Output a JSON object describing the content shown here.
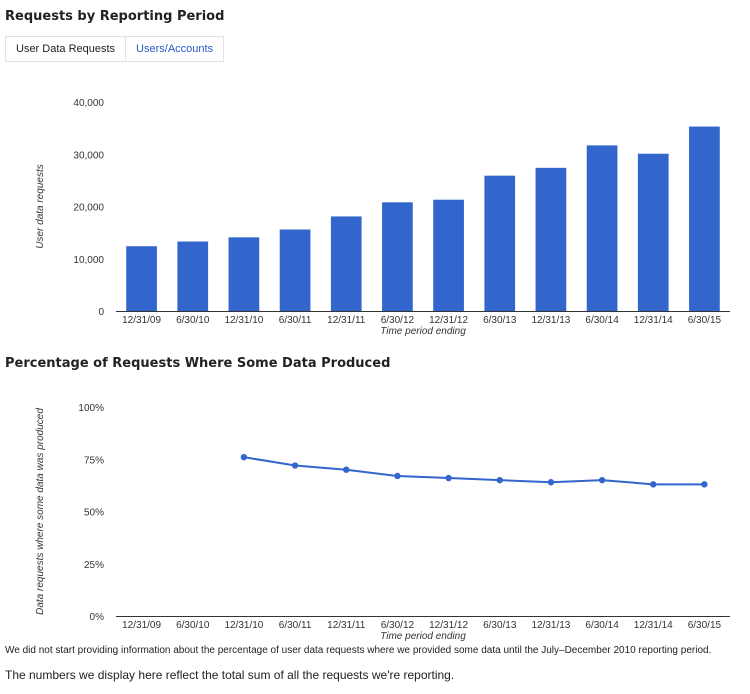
{
  "section1_title": "Requests by Reporting Period",
  "tabs": [
    {
      "label": "User Data Requests",
      "active": true
    },
    {
      "label": "Users/Accounts",
      "active": false
    }
  ],
  "section2_title": "Percentage of Requests Where Some Data Produced",
  "note_percentage": "We did not start providing information about the percentage of user data requests where we provided some data until the July–December 2010 reporting period.",
  "note_totals": "The numbers we display here reflect the total sum of all the requests we're reporting.",
  "chart_data": [
    {
      "type": "bar",
      "color": "#3366cc",
      "categories": [
        "12/31/09",
        "6/30/10",
        "12/31/10",
        "6/30/11",
        "12/31/11",
        "6/30/12",
        "12/31/12",
        "6/30/13",
        "12/31/13",
        "6/30/14",
        "12/31/14",
        "6/30/15"
      ],
      "values": [
        12400,
        13300,
        14100,
        15600,
        18100,
        20800,
        21300,
        25900,
        27400,
        31700,
        30100,
        35300
      ],
      "ylabel": "User data requests",
      "xlabel": "Time period ending",
      "ylim": [
        0,
        40000
      ],
      "yticks": [
        0,
        10000,
        20000,
        30000,
        40000
      ],
      "ytick_labels": [
        "0",
        "10,000",
        "20,000",
        "30,000",
        "40,000"
      ],
      "grid": false
    },
    {
      "type": "line",
      "color": "#3366cc",
      "categories": [
        "12/31/09",
        "6/30/10",
        "12/31/10",
        "6/30/11",
        "12/31/11",
        "6/30/12",
        "12/31/12",
        "6/30/13",
        "12/31/13",
        "6/30/14",
        "12/31/14",
        "6/30/15"
      ],
      "values": [
        null,
        null,
        76,
        72,
        70,
        67,
        66,
        65,
        64,
        65,
        63,
        63
      ],
      "ylabel": "Data requests where some data was produced",
      "xlabel": "Time period ending",
      "ylim": [
        0,
        100
      ],
      "yticks": [
        0,
        25,
        50,
        75,
        100
      ],
      "ytick_labels": [
        "0%",
        "25%",
        "50%",
        "75%",
        "100%"
      ],
      "grid": false
    }
  ]
}
